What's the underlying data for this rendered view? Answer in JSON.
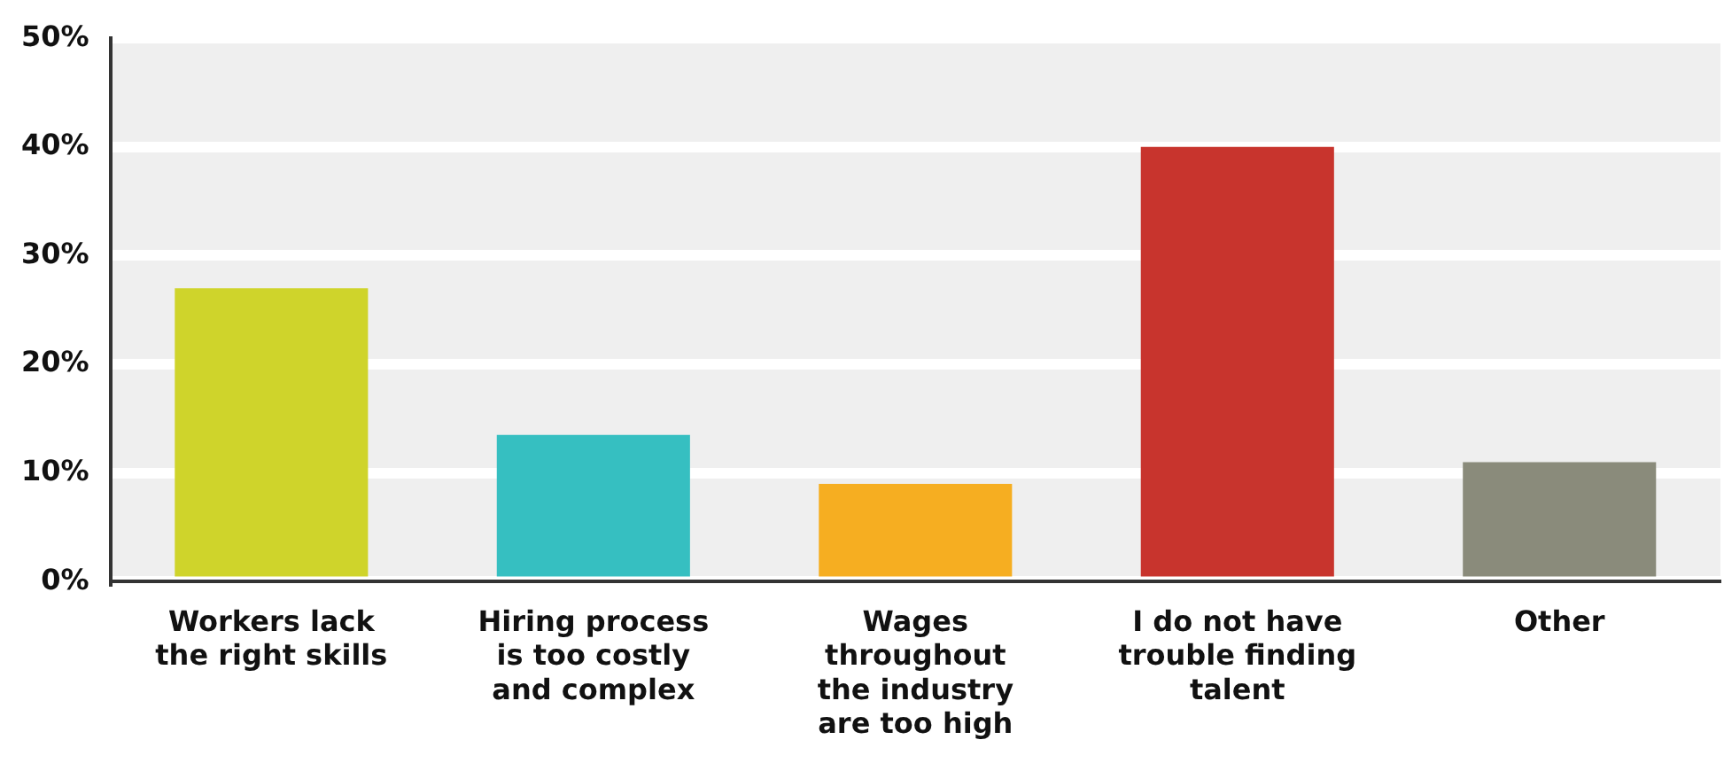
{
  "chart_data": {
    "type": "bar",
    "categories": [
      "Workers lack the right skills",
      "Hiring process is too costly and complex",
      "Wages throughout the industry are too high",
      "I do not have trouble finding talent",
      "Other"
    ],
    "values": [
      27,
      13.5,
      9,
      40,
      11
    ],
    "colors": [
      "#cfd42b",
      "#36bfc1",
      "#f6ae21",
      "#c8342d",
      "#8a8b7b"
    ],
    "ylim": [
      0,
      50
    ],
    "yticks": [
      {
        "value": 0,
        "label": "0%"
      },
      {
        "value": 10,
        "label": "10%"
      },
      {
        "value": 20,
        "label": "20%"
      },
      {
        "value": 30,
        "label": "30%"
      },
      {
        "value": 40,
        "label": "40%"
      },
      {
        "value": 50,
        "label": "50%"
      }
    ],
    "grid": true
  }
}
